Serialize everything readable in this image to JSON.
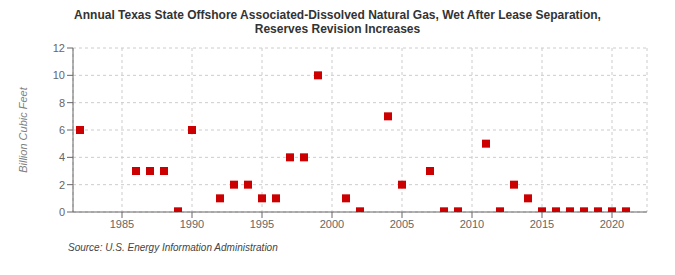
{
  "chart_data": {
    "type": "scatter",
    "title": "Annual Texas State Offshore Associated-Dissolved Natural Gas, Wet After Lease Separation,\nReserves Revision Increases",
    "ylabel": "Billion Cubic Feet",
    "annotations": [
      "Source: U.S. Energy Information Administration"
    ],
    "x": [
      1982,
      1986,
      1987,
      1988,
      1989,
      1990,
      1992,
      1993,
      1994,
      1995,
      1996,
      1997,
      1998,
      1999,
      2001,
      2002,
      2004,
      2005,
      2007,
      2008,
      2009,
      2011,
      2012,
      2013,
      2014,
      2015,
      2016,
      2017,
      2018,
      2019,
      2020,
      2021
    ],
    "values": [
      6.0,
      3.0,
      3.0,
      3.0,
      0.05,
      6.0,
      1.0,
      2.0,
      2.0,
      1.0,
      1.0,
      4.0,
      4.0,
      10.0,
      1.0,
      0.05,
      7.0,
      2.0,
      3.0,
      0.05,
      0.05,
      5.0,
      0.05,
      2.0,
      1.0,
      0.05,
      0.05,
      0.05,
      0.05,
      0.05,
      0.05,
      0.05
    ],
    "color": "#cc0000",
    "marker": "square",
    "xlim": [
      1981.5,
      2022.5
    ],
    "ylim": [
      0,
      12
    ],
    "xticks": [
      1985,
      1990,
      1995,
      2000,
      2005,
      2010,
      2015,
      2020
    ],
    "yticks": [
      0,
      2,
      4,
      6,
      8,
      10,
      12
    ],
    "grid": true
  }
}
